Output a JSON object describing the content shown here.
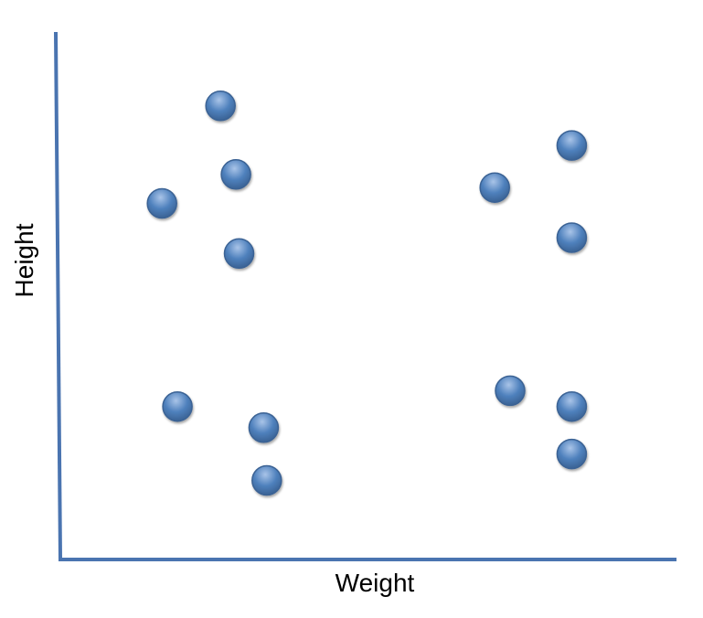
{
  "chart_data": {
    "type": "scatter",
    "title": "",
    "xlabel": "Weight",
    "ylabel": "Height",
    "grid": false,
    "legend": "none",
    "xlim": [
      0,
      100
    ],
    "ylim": [
      0,
      100
    ],
    "series": [
      {
        "points": [
          {
            "x": 26,
            "y": 86
          },
          {
            "x": 28.5,
            "y": 73
          },
          {
            "x": 16.5,
            "y": 67.5
          },
          {
            "x": 29,
            "y": 58
          },
          {
            "x": 19,
            "y": 29
          },
          {
            "x": 33,
            "y": 25
          },
          {
            "x": 33.5,
            "y": 15
          },
          {
            "x": 70.5,
            "y": 70.5
          },
          {
            "x": 83,
            "y": 78.5
          },
          {
            "x": 83,
            "y": 61
          },
          {
            "x": 73,
            "y": 32
          },
          {
            "x": 83,
            "y": 29
          },
          {
            "x": 83,
            "y": 20
          }
        ]
      }
    ],
    "colors": {
      "axis": "#4a74b0",
      "marker_fill": "#4f81bd",
      "marker_highlight": "#a9c4e8",
      "marker_stroke": "#3a6294"
    }
  }
}
